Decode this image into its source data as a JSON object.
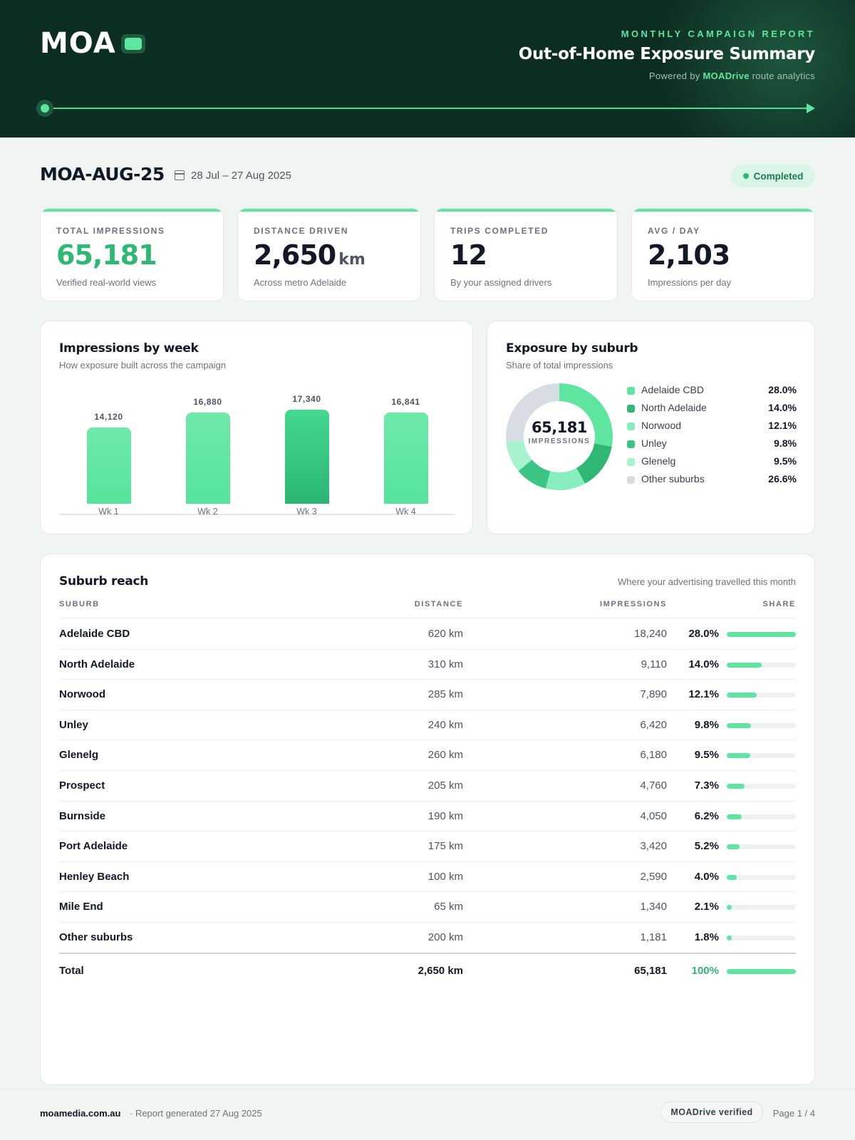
{
  "header": {
    "logo_text": "MOA",
    "kicker": "MONTHLY CAMPAIGN REPORT",
    "title": "Out-of-Home Exposure Summary",
    "powered_prefix": "Powered by",
    "powered_brand": "MOADrive",
    "powered_suffix": "route analytics"
  },
  "campaign": {
    "id": "MOA-AUG-25",
    "date_range": "28 Jul – 27 Aug 2025",
    "status": "Completed"
  },
  "kpis": [
    {
      "label": "TOTAL IMPRESSIONS",
      "value": "65,181",
      "unit": "",
      "sub": "Verified real-world views"
    },
    {
      "label": "DISTANCE DRIVEN",
      "value": "2,650",
      "unit": "km",
      "sub": "Across metro Adelaide"
    },
    {
      "label": "TRIPS COMPLETED",
      "value": "12",
      "unit": "",
      "sub": "By your assigned drivers"
    },
    {
      "label": "AVG / DAY",
      "value": "2,103",
      "unit": "",
      "sub": "Impressions per day"
    }
  ],
  "weekly_panel": {
    "title": "Impressions by week",
    "subtitle": "How exposure built across the campaign"
  },
  "suburb_panel": {
    "title": "Exposure by suburb",
    "subtitle": "Share of total impressions",
    "center_value": "65,181",
    "center_caption": "IMPRESSIONS"
  },
  "chart_data": [
    {
      "type": "bar",
      "title": "Impressions by week",
      "categories": [
        "Wk 1",
        "Wk 2",
        "Wk 3",
        "Wk 4"
      ],
      "values": [
        14120,
        16880,
        17340,
        16841
      ],
      "value_labels": [
        "14,120",
        "16,880",
        "17,340",
        "16,841"
      ],
      "highlight_index": 2,
      "colors": {
        "bar": "#5ee6a0",
        "highlight": "#2bb574"
      }
    },
    {
      "type": "pie",
      "title": "Exposure by suburb",
      "categories": [
        "Adelaide CBD",
        "North Adelaide",
        "Norwood",
        "Unley",
        "Glenelg",
        "Other suburbs"
      ],
      "values": [
        28.0,
        14.0,
        12.1,
        9.8,
        9.5,
        26.6
      ],
      "value_labels": [
        "28.0%",
        "14.0%",
        "12.1%",
        "9.8%",
        "9.5%",
        "26.6%"
      ],
      "colors": [
        "#5ee6a0",
        "#2fb874",
        "#86efbd",
        "#3cc486",
        "#a7f3cd",
        "#d8dde3"
      ]
    }
  ],
  "table": {
    "title": "Suburb reach",
    "note": "Where your advertising travelled this month",
    "columns": {
      "suburb": "SUBURB",
      "distance": "DISTANCE",
      "impressions": "IMPRESSIONS",
      "share": "SHARE"
    },
    "rows": [
      {
        "suburb": "Adelaide CBD",
        "distance": "620 km",
        "impressions": "18,240",
        "share": "28.0%",
        "share_value": 28.0
      },
      {
        "suburb": "North Adelaide",
        "distance": "310 km",
        "impressions": "9,110",
        "share": "14.0%",
        "share_value": 14.0
      },
      {
        "suburb": "Norwood",
        "distance": "285 km",
        "impressions": "7,890",
        "share": "12.1%",
        "share_value": 12.1
      },
      {
        "suburb": "Unley",
        "distance": "240 km",
        "impressions": "6,420",
        "share": "9.8%",
        "share_value": 9.8
      },
      {
        "suburb": "Glenelg",
        "distance": "260 km",
        "impressions": "6,180",
        "share": "9.5%",
        "share_value": 9.5
      },
      {
        "suburb": "Prospect",
        "distance": "205 km",
        "impressions": "4,760",
        "share": "7.3%",
        "share_value": 7.3
      },
      {
        "suburb": "Burnside",
        "distance": "190 km",
        "impressions": "4,050",
        "share": "6.2%",
        "share_value": 6.2
      },
      {
        "suburb": "Port Adelaide",
        "distance": "175 km",
        "impressions": "3,420",
        "share": "5.2%",
        "share_value": 5.2
      },
      {
        "suburb": "Henley Beach",
        "distance": "100 km",
        "impressions": "2,590",
        "share": "4.0%",
        "share_value": 4.0
      },
      {
        "suburb": "Mile End",
        "distance": "65 km",
        "impressions": "1,340",
        "share": "2.1%",
        "share_value": 2.1
      },
      {
        "suburb": "Other suburbs",
        "distance": "200 km",
        "impressions": "1,181",
        "share": "1.8%",
        "share_value": 1.8
      }
    ],
    "total": {
      "suburb": "Total",
      "distance": "2,650 km",
      "impressions": "65,181",
      "share": "100%",
      "share_value": 100
    }
  },
  "footer": {
    "site": "moamedia.com.au",
    "generated": "· Report generated 27 Aug 2025",
    "badge": "MOADrive verified",
    "page": "Page 1 / 4"
  }
}
